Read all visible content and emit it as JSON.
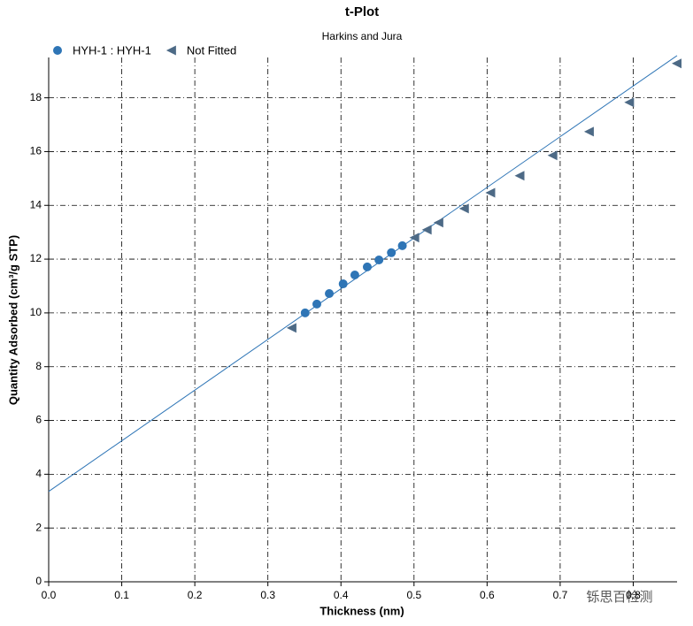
{
  "chart_data": {
    "type": "scatter",
    "title": "t-Plot",
    "subtitle": "Harkins and Jura",
    "x_label": "Thickness (nm)",
    "y_label": "Quantity Adsorbed (cm³/g STP)",
    "xlim": [
      0,
      0.86
    ],
    "ylim": [
      0,
      19.5
    ],
    "xticks": [
      {
        "value": 0,
        "label": "0.0"
      },
      0.1,
      0.2,
      0.3,
      0.4,
      0.5,
      0.6,
      0.7,
      0.8
    ],
    "yticks": [
      0,
      2,
      4,
      6,
      8,
      10,
      12,
      14,
      16,
      18
    ],
    "grid": true,
    "series": [
      {
        "name": "HYH-1 : HYH-1",
        "color": "#2e75b6",
        "marker": "circle",
        "x": [
          0.351,
          0.367,
          0.384,
          0.403,
          0.419,
          0.436,
          0.452,
          0.469,
          0.484
        ],
        "values": [
          10.0,
          10.33,
          10.72,
          11.08,
          11.41,
          11.71,
          11.97,
          12.24,
          12.5
        ]
      },
      {
        "name": "Not Fitted",
        "color": "#4d6a86",
        "marker": "triangle-left",
        "x": [
          0.333,
          0.501,
          0.518,
          0.534,
          0.569,
          0.605,
          0.645,
          0.69,
          0.74,
          0.795,
          0.86
        ],
        "values": [
          9.44,
          12.8,
          13.09,
          13.36,
          13.88,
          14.47,
          15.1,
          15.86,
          16.74,
          17.83,
          19.28
        ]
      }
    ],
    "fit_line": {
      "color": "#2e75b6",
      "x": [
        0,
        0.86
      ],
      "values": [
        3.36,
        19.57
      ]
    },
    "watermark": "铄思百检测"
  }
}
